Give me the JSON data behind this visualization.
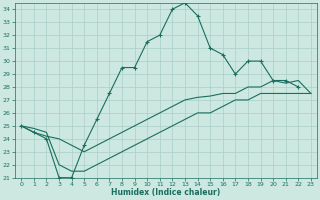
{
  "xlabel": "Humidex (Indice chaleur)",
  "bg_color": "#cce8e0",
  "grid_color": "#aacfc8",
  "line_color": "#1a6e60",
  "xlim": [
    -0.5,
    23.5
  ],
  "ylim": [
    21,
    34.5
  ],
  "xticks": [
    0,
    1,
    2,
    3,
    4,
    5,
    6,
    7,
    8,
    9,
    10,
    11,
    12,
    13,
    14,
    15,
    16,
    17,
    18,
    19,
    20,
    21,
    22,
    23
  ],
  "yticks": [
    21,
    22,
    23,
    24,
    25,
    26,
    27,
    28,
    29,
    30,
    31,
    32,
    33,
    34
  ],
  "series1_x": [
    0,
    1,
    2,
    3,
    4,
    5,
    6,
    7,
    8,
    9,
    10,
    11,
    12,
    13,
    14,
    15,
    16,
    17,
    18,
    19,
    20,
    21,
    22
  ],
  "series1_y": [
    25.0,
    24.5,
    24.0,
    21.0,
    21.0,
    23.5,
    25.5,
    27.5,
    29.5,
    29.5,
    31.5,
    32.0,
    34.0,
    34.5,
    33.5,
    31.0,
    30.5,
    29.0,
    30.0,
    30.0,
    28.5,
    28.5,
    28.0
  ],
  "series2_x": [
    0,
    1,
    2,
    3,
    4,
    5,
    6,
    7,
    8,
    9,
    10,
    11,
    12,
    13,
    14,
    15,
    16,
    17,
    18,
    19,
    20,
    21,
    22,
    23
  ],
  "series2_y": [
    25.0,
    24.5,
    24.2,
    24.0,
    23.5,
    23.0,
    23.5,
    24.0,
    24.5,
    25.0,
    25.5,
    26.0,
    26.5,
    27.0,
    27.2,
    27.3,
    27.5,
    27.5,
    28.0,
    28.0,
    28.5,
    28.3,
    28.5,
    27.5
  ],
  "series3_x": [
    0,
    1,
    2,
    3,
    4,
    5,
    6,
    7,
    8,
    9,
    10,
    11,
    12,
    13,
    14,
    15,
    16,
    17,
    18,
    19,
    20,
    21,
    22,
    23
  ],
  "series3_y": [
    25.0,
    24.8,
    24.5,
    22.0,
    21.5,
    21.5,
    22.0,
    22.5,
    23.0,
    23.5,
    24.0,
    24.5,
    25.0,
    25.5,
    26.0,
    26.0,
    26.5,
    27.0,
    27.0,
    27.5,
    27.5,
    27.5,
    27.5,
    27.5
  ]
}
